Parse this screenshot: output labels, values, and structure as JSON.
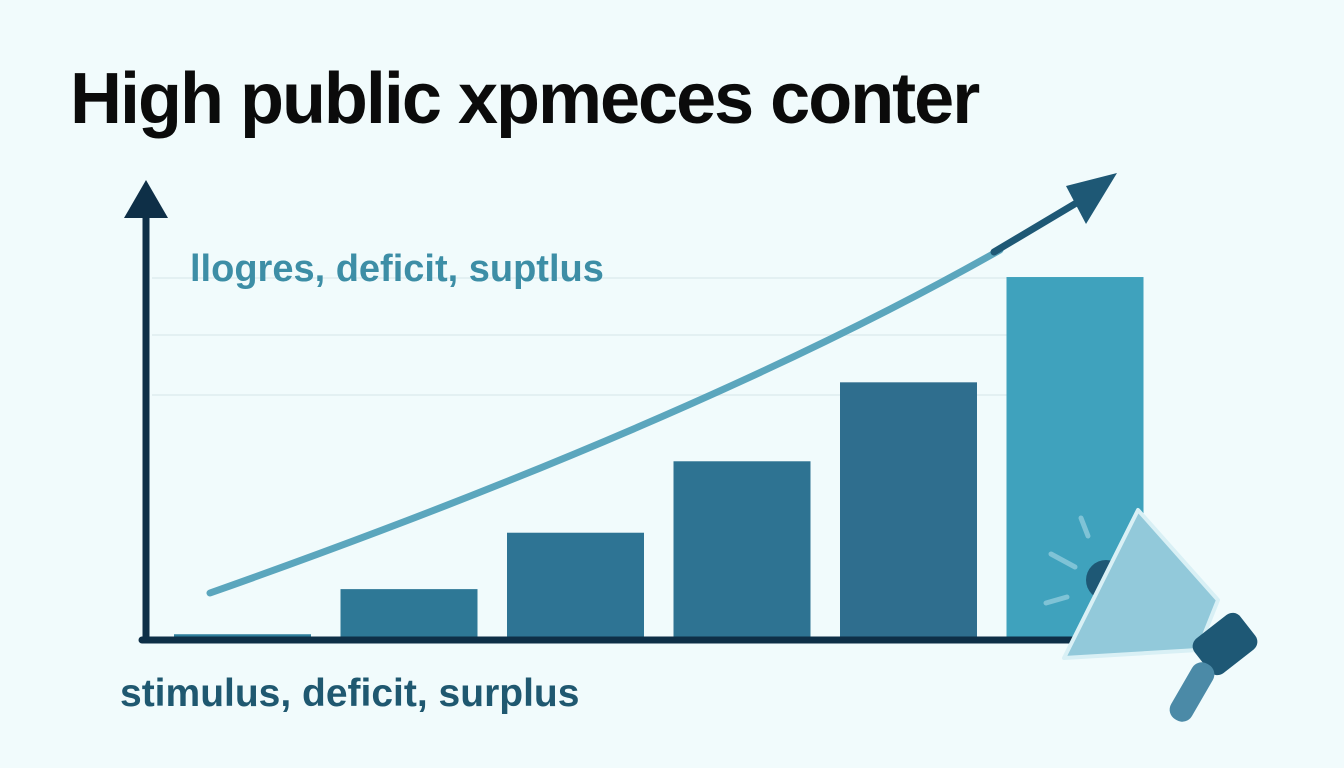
{
  "title": "High public xpmeces conter",
  "chart_data": {
    "type": "bar",
    "title": "High public xpmeces conter",
    "legend_label": "llogres, deficit, suptlus",
    "xlabel": "stimulus, deficit, surplus",
    "ylabel": "",
    "values": [
      1,
      13,
      28,
      47,
      68,
      96
    ],
    "ylim": [
      0,
      100
    ],
    "grid": true,
    "trend_line": true,
    "colors": {
      "bars": [
        "#2f7f9c",
        "#2e7896",
        "#2e7494",
        "#2e7392",
        "#2f6e8e",
        "#3fa2bd"
      ],
      "axis": "#0e2f47",
      "trend": "#5ba6bd",
      "trend_head": "#1e5875"
    },
    "icons": [
      "megaphone-icon"
    ]
  }
}
